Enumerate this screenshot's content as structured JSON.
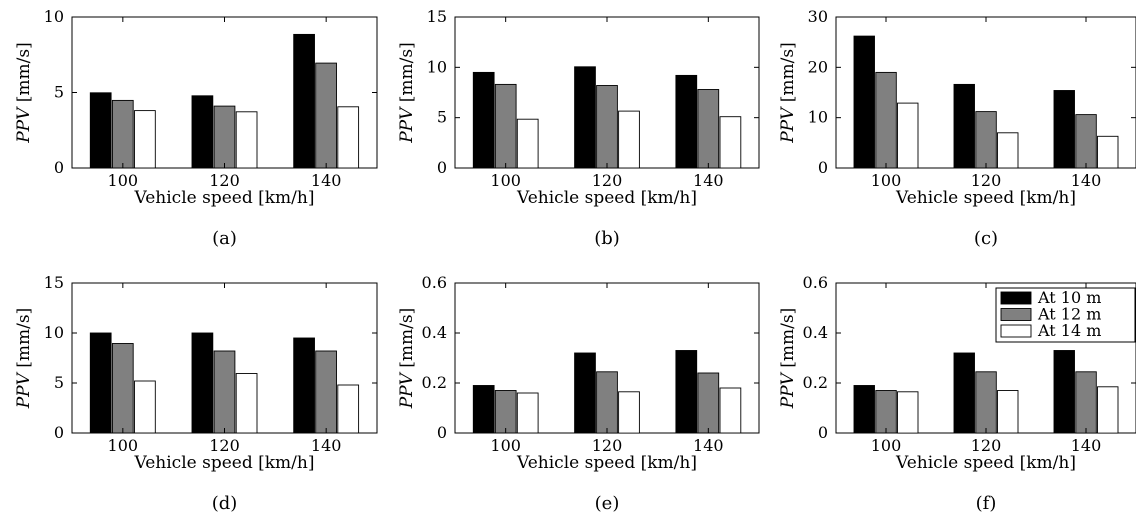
{
  "colors": {
    "at_10m": "#000000",
    "at_12m": "#808080",
    "at_14m": "#ffffff"
  },
  "chart_data": [
    {
      "type": "bar",
      "caption": "(a)",
      "categories": [
        "100",
        "120",
        "140"
      ],
      "xlabel": "Vehicle speed [km/h]",
      "ylabel_italic": "PPV",
      "ylabel_unit": "[mm/s]",
      "ylim": [
        0,
        10
      ],
      "yticks": [
        "0",
        "5",
        "10"
      ],
      "grid": false,
      "series": [
        {
          "values": [
            4.98,
            4.78,
            8.85
          ]
        },
        {
          "values": [
            4.48,
            4.1,
            6.95
          ]
        },
        {
          "values": [
            3.8,
            3.72,
            4.05
          ]
        }
      ]
    },
    {
      "type": "bar",
      "caption": "(b)",
      "categories": [
        "100",
        "120",
        "140"
      ],
      "xlabel": "Vehicle speed [km/h]",
      "ylabel_italic": "PPV",
      "ylabel_unit": "[mm/s]",
      "ylim": [
        0,
        15
      ],
      "yticks": [
        "0",
        "5",
        "10",
        "15"
      ],
      "grid": false,
      "series": [
        {
          "values": [
            9.5,
            10.05,
            9.2
          ]
        },
        {
          "values": [
            8.3,
            8.2,
            7.8
          ]
        },
        {
          "values": [
            4.85,
            5.65,
            5.1
          ]
        }
      ]
    },
    {
      "type": "bar",
      "caption": "(c)",
      "categories": [
        "100",
        "120",
        "140"
      ],
      "xlabel": "Vehicle speed [km/h]",
      "ylabel_italic": "PPV",
      "ylabel_unit": "[mm/s]",
      "ylim": [
        0,
        30
      ],
      "yticks": [
        "0",
        "10",
        "20",
        "30"
      ],
      "grid": false,
      "series": [
        {
          "values": [
            26.2,
            16.6,
            15.4
          ]
        },
        {
          "values": [
            19.0,
            11.2,
            10.6
          ]
        },
        {
          "values": [
            12.9,
            7.0,
            6.3
          ]
        }
      ]
    },
    {
      "type": "bar",
      "caption": "(d)",
      "categories": [
        "100",
        "120",
        "140"
      ],
      "xlabel": "Vehicle speed [km/h]",
      "ylabel_italic": "PPV",
      "ylabel_unit": "[mm/s]",
      "ylim": [
        0,
        15
      ],
      "yticks": [
        "0",
        "5",
        "10",
        "15"
      ],
      "grid": false,
      "series": [
        {
          "values": [
            10.0,
            10.0,
            9.5
          ]
        },
        {
          "values": [
            8.95,
            8.2,
            8.2
          ]
        },
        {
          "values": [
            5.2,
            5.95,
            4.8
          ]
        }
      ]
    },
    {
      "type": "bar",
      "caption": "(e)",
      "categories": [
        "100",
        "120",
        "140"
      ],
      "xlabel": "Vehicle speed [km/h]",
      "ylabel_italic": "PPV",
      "ylabel_unit": "[mm/s]",
      "ylim": [
        0,
        0.6
      ],
      "yticks": [
        "0",
        "0.2",
        "0.4",
        "0.6"
      ],
      "grid": false,
      "series": [
        {
          "values": [
            0.19,
            0.32,
            0.33
          ]
        },
        {
          "values": [
            0.17,
            0.245,
            0.24
          ]
        },
        {
          "values": [
            0.16,
            0.165,
            0.18
          ]
        }
      ]
    },
    {
      "type": "bar",
      "caption": "(f)",
      "categories": [
        "100",
        "120",
        "140"
      ],
      "xlabel": "Vehicle speed [km/h]",
      "ylabel_italic": "PPV",
      "ylabel_unit": "[mm/s]",
      "ylim": [
        0,
        0.6
      ],
      "yticks": [
        "0",
        "0.2",
        "0.4",
        "0.6"
      ],
      "grid": false,
      "legend": {
        "placement": "top-right",
        "entries": [
          "At 10 m",
          "At 12 m",
          "At 14 m"
        ]
      },
      "series": [
        {
          "name": "At 10 m",
          "values": [
            0.19,
            0.32,
            0.33
          ]
        },
        {
          "name": "At 12 m",
          "values": [
            0.17,
            0.245,
            0.245
          ]
        },
        {
          "name": "At 14 m",
          "values": [
            0.165,
            0.17,
            0.185
          ]
        }
      ]
    }
  ]
}
